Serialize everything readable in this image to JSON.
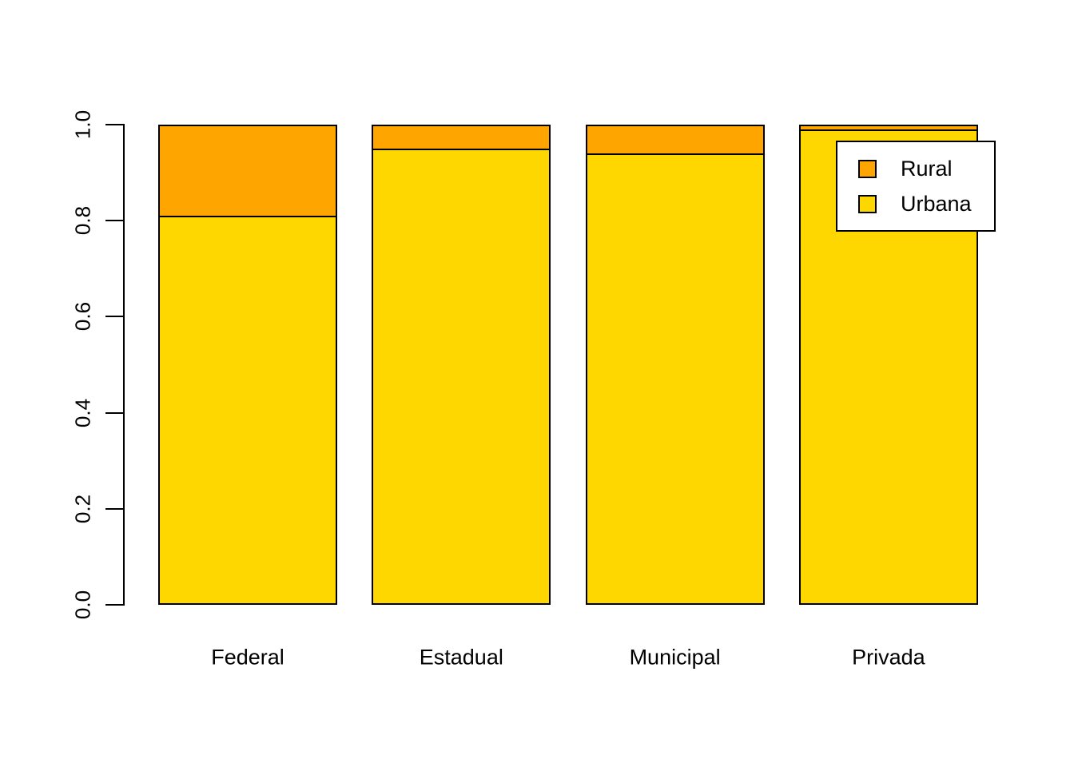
{
  "chart_data": {
    "type": "bar",
    "stacked": true,
    "title": "",
    "xlabel": "",
    "ylabel": "",
    "categories": [
      "Federal",
      "Estadual",
      "Municipal",
      "Privada"
    ],
    "series": [
      {
        "name": "Urbana",
        "color": "#FFD700",
        "values": [
          0.81,
          0.95,
          0.94,
          0.99
        ]
      },
      {
        "name": "Rural",
        "color": "#FFA500",
        "values": [
          0.19,
          0.05,
          0.06,
          0.01
        ]
      }
    ],
    "ylim": [
      0.0,
      1.0
    ],
    "ytick_labels": [
      "0.0",
      "0.2",
      "0.4",
      "0.6",
      "0.8",
      "1.0"
    ],
    "ytick_values": [
      0.0,
      0.2,
      0.4,
      0.6,
      0.8,
      1.0
    ],
    "grid": false,
    "legend": {
      "position": "top-right",
      "entries": [
        {
          "label": "Rural",
          "color": "#FFA500"
        },
        {
          "label": "Urbana",
          "color": "#FFD700"
        }
      ]
    },
    "colors": {
      "background": "#FFFFFF",
      "axis": "#000000",
      "bar_border": "#000000",
      "text": "#000000"
    }
  }
}
